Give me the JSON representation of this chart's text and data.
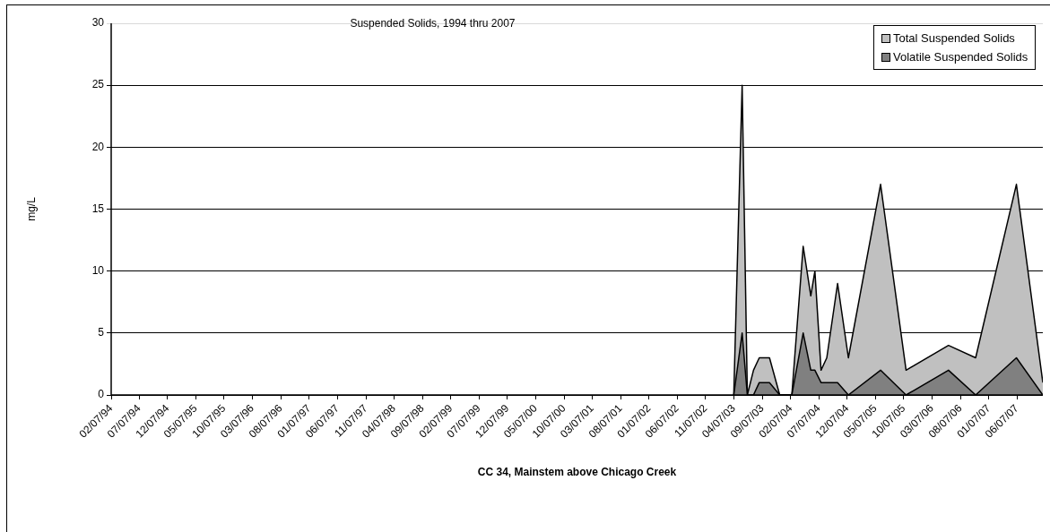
{
  "chart_data": {
    "type": "area",
    "title": "Suspended Solids, 1994 thru 2007",
    "xlabel": "CC 34, Mainstem above Chicago Creek",
    "ylabel": "mg/L",
    "x": [
      "2003-04-07",
      "2003-05-22",
      "2003-06-19",
      "2003-07-22",
      "2003-08-22",
      "2003-10-16",
      "2003-12-10",
      "2004-02-13",
      "2004-04-14",
      "2004-05-25",
      "2004-06-16",
      "2004-07-19",
      "2004-08-19",
      "2004-10-16",
      "2004-12-13",
      "2005-06-04",
      "2005-10-19",
      "2006-06-04",
      "2006-10-28",
      "2007-06-04",
      "2007-10-24"
    ],
    "series": [
      {
        "name": "Total Suspended Solids",
        "color": "#c0c0c0",
        "values": [
          0,
          25,
          0,
          2,
          3,
          3,
          0,
          0,
          12,
          8,
          10,
          2,
          3,
          9,
          3,
          17,
          2,
          4,
          3,
          17,
          1
        ]
      },
      {
        "name": "Volatile Suspended Solids",
        "color": "#808080",
        "values": [
          0,
          5,
          0,
          0,
          1,
          1,
          0,
          0,
          5,
          2,
          2,
          1,
          1,
          1,
          0,
          2,
          0,
          2,
          0,
          3,
          0
        ]
      }
    ],
    "xlim": [
      "1994-02-07",
      "2007-10-24"
    ],
    "xticks": [
      {
        "value": "1994-02-07",
        "label": "02/07/94"
      },
      {
        "value": "1994-07-07",
        "label": "07/07/94"
      },
      {
        "value": "1994-12-07",
        "label": "12/07/94"
      },
      {
        "value": "1995-05-07",
        "label": "05/07/95"
      },
      {
        "value": "1995-10-07",
        "label": "10/07/95"
      },
      {
        "value": "1996-03-07",
        "label": "03/07/96"
      },
      {
        "value": "1996-08-07",
        "label": "08/07/96"
      },
      {
        "value": "1997-01-07",
        "label": "01/07/97"
      },
      {
        "value": "1997-06-07",
        "label": "06/07/97"
      },
      {
        "value": "1997-11-07",
        "label": "11/07/97"
      },
      {
        "value": "1998-04-07",
        "label": "04/07/98"
      },
      {
        "value": "1998-09-07",
        "label": "09/07/98"
      },
      {
        "value": "1999-02-07",
        "label": "02/07/99"
      },
      {
        "value": "1999-07-07",
        "label": "07/07/99"
      },
      {
        "value": "1999-12-07",
        "label": "12/07/99"
      },
      {
        "value": "2000-05-07",
        "label": "05/07/00"
      },
      {
        "value": "2000-10-07",
        "label": "10/07/00"
      },
      {
        "value": "2001-03-07",
        "label": "03/07/01"
      },
      {
        "value": "2001-08-07",
        "label": "08/07/01"
      },
      {
        "value": "2002-01-07",
        "label": "01/07/02"
      },
      {
        "value": "2002-06-07",
        "label": "06/07/02"
      },
      {
        "value": "2002-11-07",
        "label": "11/07/02"
      },
      {
        "value": "2003-04-07",
        "label": "04/07/03"
      },
      {
        "value": "2003-09-07",
        "label": "09/07/03"
      },
      {
        "value": "2004-02-07",
        "label": "02/07/04"
      },
      {
        "value": "2004-07-07",
        "label": "07/07/04"
      },
      {
        "value": "2004-12-07",
        "label": "12/07/04"
      },
      {
        "value": "2005-05-07",
        "label": "05/07/05"
      },
      {
        "value": "2005-10-07",
        "label": "10/07/05"
      },
      {
        "value": "2006-03-07",
        "label": "03/07/06"
      },
      {
        "value": "2006-08-07",
        "label": "08/07/06"
      },
      {
        "value": "2007-01-07",
        "label": "01/07/07"
      },
      {
        "value": "2007-06-07",
        "label": "06/07/07"
      }
    ],
    "ylim": [
      0,
      30
    ],
    "yticks": [
      0,
      5,
      10,
      15,
      20,
      25,
      30
    ],
    "grid": "y",
    "legend": "top right"
  }
}
